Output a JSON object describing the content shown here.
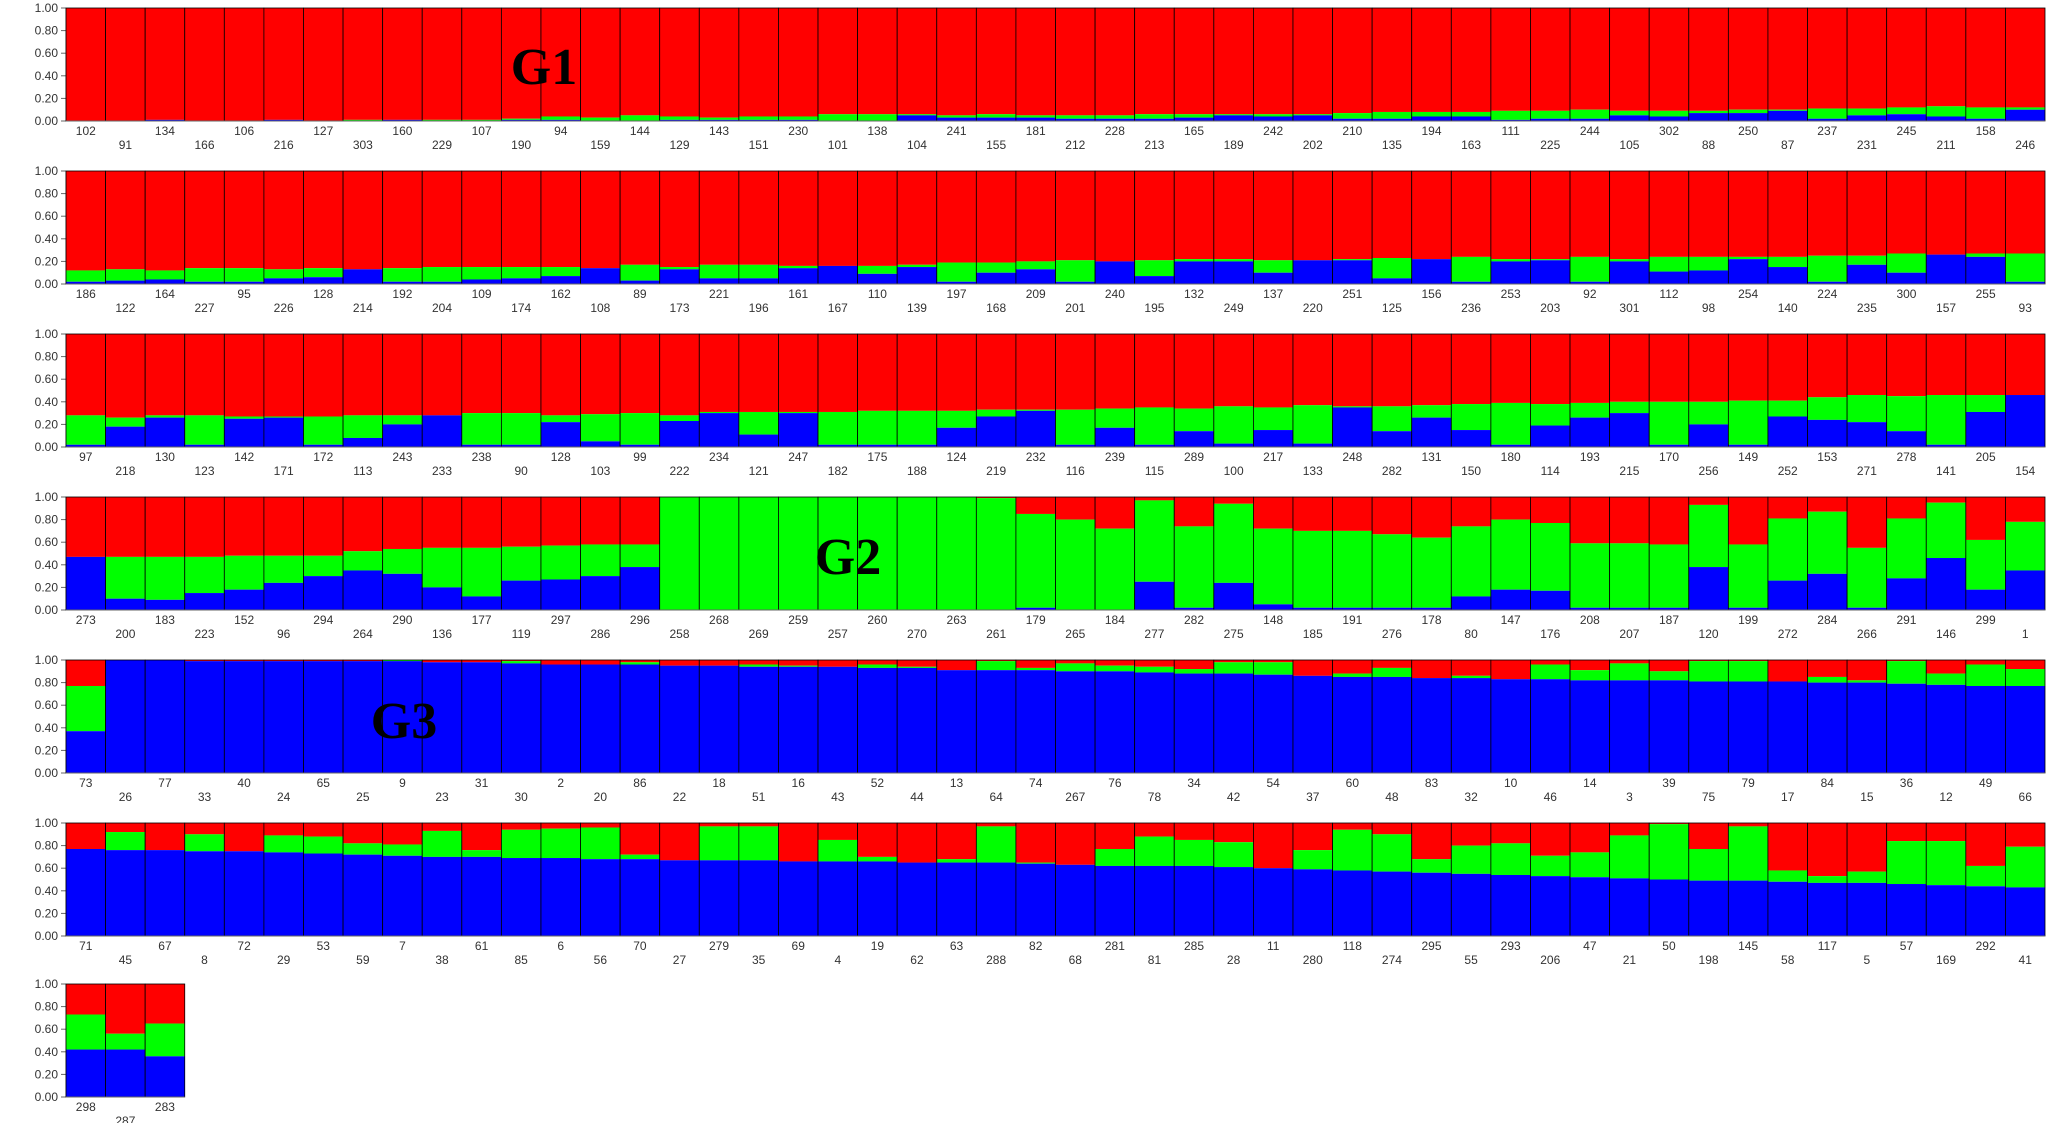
{
  "chart_data": {
    "type": "bar",
    "stacked": true,
    "ylim": [
      0,
      1
    ],
    "yticks": [
      "0.00",
      "0.20",
      "0.40",
      "0.60",
      "0.80",
      "1.00"
    ],
    "series_colors": [
      "#0000ff",
      "#00ff00",
      "#ff0000"
    ],
    "group_labels": [
      "G1",
      "G2",
      "G3"
    ],
    "panels": [
      {
        "samples": [
          "102",
          "91",
          "134",
          "166",
          "106",
          "216",
          "127",
          "303",
          "160",
          "229",
          "107",
          "190",
          "94",
          "159",
          "144",
          "129",
          "143",
          "151",
          "230",
          "101",
          "138",
          "104",
          "241",
          "155",
          "181",
          "212",
          "228",
          "213",
          "165",
          "189",
          "242",
          "202",
          "210",
          "135",
          "194",
          "163",
          "111",
          "225",
          "244",
          "105",
          "302",
          "88",
          "250",
          "87",
          "237",
          "231",
          "245",
          "211",
          "158",
          "246"
        ],
        "blue": [
          0.0,
          0.0,
          0.01,
          0.0,
          0.0,
          0.01,
          0.0,
          0.0,
          0.01,
          0.0,
          0.0,
          0.01,
          0.01,
          0.0,
          0.0,
          0.01,
          0.01,
          0.01,
          0.01,
          0.0,
          0.0,
          0.05,
          0.03,
          0.03,
          0.03,
          0.02,
          0.02,
          0.02,
          0.03,
          0.05,
          0.04,
          0.05,
          0.02,
          0.02,
          0.04,
          0.04,
          0.01,
          0.02,
          0.02,
          0.05,
          0.04,
          0.07,
          0.07,
          0.09,
          0.02,
          0.05,
          0.06,
          0.04,
          0.02,
          0.1
        ],
        "green": [
          0.0,
          0.0,
          0.0,
          0.0,
          0.0,
          0.0,
          0.0,
          0.01,
          0.0,
          0.01,
          0.01,
          0.01,
          0.03,
          0.03,
          0.05,
          0.03,
          0.02,
          0.03,
          0.03,
          0.06,
          0.06,
          0.01,
          0.02,
          0.03,
          0.02,
          0.03,
          0.03,
          0.04,
          0.03,
          0.01,
          0.02,
          0.01,
          0.05,
          0.06,
          0.04,
          0.04,
          0.08,
          0.07,
          0.08,
          0.04,
          0.05,
          0.02,
          0.03,
          0.01,
          0.09,
          0.06,
          0.06,
          0.09,
          0.1,
          0.02
        ],
        "label": "G1"
      },
      {
        "samples": [
          "186",
          "122",
          "164",
          "227",
          "95",
          "226",
          "128",
          "214",
          "192",
          "204",
          "109",
          "174",
          "162",
          "108",
          "89",
          "173",
          "221",
          "196",
          "161",
          "167",
          "110",
          "139",
          "197",
          "168",
          "209",
          "201",
          "240",
          "195",
          "132",
          "249",
          "137",
          "220",
          "251",
          "125",
          "156",
          "236",
          "253",
          "203",
          "92",
          "301",
          "112",
          "98",
          "254",
          "140",
          "224",
          "235",
          "300",
          "157",
          "255",
          "93"
        ],
        "blue": [
          0.02,
          0.03,
          0.04,
          0.02,
          0.02,
          0.05,
          0.06,
          0.13,
          0.02,
          0.02,
          0.04,
          0.05,
          0.07,
          0.14,
          0.03,
          0.13,
          0.05,
          0.05,
          0.14,
          0.16,
          0.09,
          0.15,
          0.02,
          0.1,
          0.13,
          0.02,
          0.2,
          0.07,
          0.2,
          0.2,
          0.1,
          0.21,
          0.21,
          0.05,
          0.22,
          0.02,
          0.2,
          0.21,
          0.02,
          0.2,
          0.11,
          0.12,
          0.22,
          0.15,
          0.02,
          0.17,
          0.1,
          0.26,
          0.24,
          0.02
        ],
        "green": [
          0.1,
          0.1,
          0.08,
          0.12,
          0.12,
          0.08,
          0.08,
          0.0,
          0.12,
          0.13,
          0.11,
          0.1,
          0.08,
          0.0,
          0.14,
          0.02,
          0.12,
          0.12,
          0.02,
          0.0,
          0.07,
          0.02,
          0.17,
          0.09,
          0.07,
          0.19,
          0.0,
          0.14,
          0.02,
          0.02,
          0.11,
          0.0,
          0.01,
          0.18,
          0.0,
          0.22,
          0.02,
          0.01,
          0.22,
          0.02,
          0.13,
          0.12,
          0.02,
          0.09,
          0.23,
          0.08,
          0.17,
          0.0,
          0.03,
          0.25
        ],
        "label": ""
      },
      {
        "samples": [
          "97",
          "218",
          "130",
          "123",
          "142",
          "171",
          "172",
          "113",
          "243",
          "233",
          "238",
          "90",
          "128",
          "103",
          "99",
          "222",
          "234",
          "121",
          "247",
          "182",
          "175",
          "188",
          "124",
          "219",
          "232",
          "116",
          "239",
          "115",
          "289",
          "100",
          "217",
          "133",
          "248",
          "282",
          "131",
          "150",
          "180",
          "114",
          "193",
          "215",
          "170",
          "256",
          "149",
          "252",
          "153",
          "271",
          "278",
          "141",
          "205",
          "154"
        ],
        "blue": [
          0.02,
          0.18,
          0.26,
          0.02,
          0.25,
          0.26,
          0.02,
          0.08,
          0.2,
          0.28,
          0.02,
          0.02,
          0.22,
          0.05,
          0.02,
          0.23,
          0.3,
          0.11,
          0.3,
          0.02,
          0.02,
          0.02,
          0.17,
          0.27,
          0.32,
          0.02,
          0.17,
          0.02,
          0.14,
          0.03,
          0.15,
          0.03,
          0.35,
          0.14,
          0.26,
          0.15,
          0.02,
          0.19,
          0.26,
          0.3,
          0.02,
          0.2,
          0.02,
          0.27,
          0.24,
          0.22,
          0.14,
          0.02,
          0.31,
          0.46
        ],
        "green": [
          0.26,
          0.08,
          0.02,
          0.26,
          0.02,
          0.01,
          0.25,
          0.2,
          0.08,
          0.0,
          0.28,
          0.28,
          0.06,
          0.24,
          0.28,
          0.05,
          0.01,
          0.2,
          0.01,
          0.29,
          0.3,
          0.3,
          0.15,
          0.06,
          0.01,
          0.31,
          0.17,
          0.33,
          0.2,
          0.33,
          0.2,
          0.34,
          0.01,
          0.22,
          0.11,
          0.23,
          0.37,
          0.19,
          0.13,
          0.1,
          0.38,
          0.2,
          0.39,
          0.14,
          0.2,
          0.24,
          0.31,
          0.44,
          0.15,
          0.0
        ],
        "label": ""
      },
      {
        "samples": [
          "273",
          "200",
          "183",
          "223",
          "152",
          "96",
          "294",
          "264",
          "290",
          "136",
          "177",
          "119",
          "297",
          "286",
          "296",
          "258",
          "268",
          "269",
          "259",
          "257",
          "260",
          "270",
          "263",
          "261",
          "179",
          "265",
          "184",
          "277",
          "282",
          "275",
          "148",
          "185",
          "191",
          "276",
          "178",
          "80",
          "147",
          "176",
          "208",
          "207",
          "187",
          "120",
          "199",
          "272",
          "284",
          "266",
          "291",
          "146",
          "299",
          "1"
        ],
        "blue": [
          0.47,
          0.1,
          0.09,
          0.15,
          0.18,
          0.24,
          0.3,
          0.35,
          0.32,
          0.2,
          0.12,
          0.26,
          0.27,
          0.3,
          0.38,
          0.0,
          0.0,
          0.0,
          0.0,
          0.0,
          0.0,
          0.0,
          0.0,
          0.0,
          0.02,
          0.0,
          0.0,
          0.25,
          0.02,
          0.24,
          0.05,
          0.02,
          0.02,
          0.02,
          0.02,
          0.12,
          0.18,
          0.17,
          0.02,
          0.02,
          0.02,
          0.38,
          0.02,
          0.26,
          0.32,
          0.02,
          0.28,
          0.46,
          0.18,
          0.35
        ],
        "green": [
          0.0,
          0.37,
          0.38,
          0.32,
          0.3,
          0.24,
          0.18,
          0.17,
          0.22,
          0.35,
          0.43,
          0.3,
          0.3,
          0.28,
          0.2,
          1.0,
          1.0,
          1.0,
          1.0,
          1.0,
          1.0,
          1.0,
          1.0,
          0.99,
          0.83,
          0.8,
          0.72,
          0.72,
          0.72,
          0.7,
          0.67,
          0.68,
          0.68,
          0.65,
          0.62,
          0.62,
          0.62,
          0.6,
          0.57,
          0.57,
          0.56,
          0.55,
          0.56,
          0.55,
          0.55,
          0.53,
          0.53,
          0.49,
          0.44,
          0.43
        ],
        "label": "G2"
      },
      {
        "samples": [
          "73",
          "26",
          "77",
          "33",
          "40",
          "24",
          "65",
          "25",
          "9",
          "23",
          "31",
          "30",
          "2",
          "20",
          "86",
          "22",
          "18",
          "51",
          "16",
          "43",
          "52",
          "44",
          "13",
          "64",
          "74",
          "267",
          "76",
          "78",
          "34",
          "42",
          "54",
          "37",
          "60",
          "48",
          "83",
          "32",
          "10",
          "46",
          "14",
          "3",
          "39",
          "75",
          "79",
          "17",
          "84",
          "15",
          "36",
          "12",
          "49",
          "66"
        ],
        "blue": [
          0.37,
          1.0,
          1.0,
          0.99,
          0.99,
          0.99,
          0.99,
          0.99,
          0.99,
          0.98,
          0.98,
          0.97,
          0.96,
          0.96,
          0.96,
          0.95,
          0.95,
          0.94,
          0.94,
          0.94,
          0.93,
          0.93,
          0.91,
          0.91,
          0.91,
          0.9,
          0.9,
          0.89,
          0.88,
          0.88,
          0.87,
          0.86,
          0.85,
          0.85,
          0.84,
          0.84,
          0.83,
          0.83,
          0.82,
          0.82,
          0.82,
          0.81,
          0.81,
          0.81,
          0.8,
          0.8,
          0.79,
          0.78,
          0.77,
          0.77
        ],
        "green": [
          0.4,
          0.0,
          0.0,
          0.0,
          0.0,
          0.0,
          0.0,
          0.0,
          0.01,
          0.0,
          0.0,
          0.02,
          0.0,
          0.0,
          0.02,
          0.0,
          0.0,
          0.02,
          0.01,
          0.0,
          0.03,
          0.01,
          0.0,
          0.08,
          0.02,
          0.07,
          0.05,
          0.05,
          0.04,
          0.1,
          0.11,
          0.0,
          0.03,
          0.08,
          0.0,
          0.02,
          0.0,
          0.13,
          0.09,
          0.15,
          0.08,
          0.18,
          0.18,
          0.0,
          0.05,
          0.02,
          0.2,
          0.1,
          0.19,
          0.15
        ],
        "label": "G3"
      },
      {
        "samples": [
          "71",
          "45",
          "67",
          "8",
          "72",
          "29",
          "53",
          "59",
          "7",
          "38",
          "61",
          "85",
          "6",
          "56",
          "70",
          "27",
          "279",
          "35",
          "69",
          "4",
          "19",
          "62",
          "63",
          "288",
          "82",
          "68",
          "281",
          "81",
          "285",
          "28",
          "11",
          "280",
          "118",
          "274",
          "295",
          "55",
          "293",
          "206",
          "47",
          "21",
          "50",
          "198",
          "145",
          "58",
          "117",
          "5",
          "57",
          "169",
          "292",
          "41"
        ],
        "blue": [
          0.77,
          0.76,
          0.76,
          0.75,
          0.75,
          0.74,
          0.73,
          0.72,
          0.71,
          0.7,
          0.7,
          0.69,
          0.69,
          0.68,
          0.68,
          0.67,
          0.67,
          0.67,
          0.66,
          0.66,
          0.66,
          0.65,
          0.65,
          0.65,
          0.64,
          0.63,
          0.62,
          0.62,
          0.62,
          0.61,
          0.6,
          0.59,
          0.58,
          0.57,
          0.56,
          0.55,
          0.54,
          0.53,
          0.52,
          0.51,
          0.5,
          0.49,
          0.49,
          0.48,
          0.47,
          0.47,
          0.46,
          0.45,
          0.44,
          0.43
        ],
        "green": [
          0.0,
          0.16,
          0.0,
          0.15,
          0.0,
          0.15,
          0.15,
          0.1,
          0.1,
          0.23,
          0.06,
          0.25,
          0.26,
          0.28,
          0.04,
          0.0,
          0.3,
          0.3,
          0.0,
          0.19,
          0.04,
          0.0,
          0.03,
          0.32,
          0.01,
          0.0,
          0.15,
          0.26,
          0.23,
          0.22,
          0.0,
          0.17,
          0.36,
          0.33,
          0.12,
          0.25,
          0.28,
          0.18,
          0.22,
          0.38,
          0.49,
          0.28,
          0.48,
          0.1,
          0.06,
          0.1,
          0.38,
          0.39,
          0.18,
          0.36
        ],
        "label": ""
      },
      {
        "samples": [
          "298",
          "287",
          "283"
        ],
        "blue": [
          0.42,
          0.42,
          0.36
        ],
        "green": [
          0.31,
          0.14,
          0.29
        ],
        "label": ""
      }
    ]
  }
}
